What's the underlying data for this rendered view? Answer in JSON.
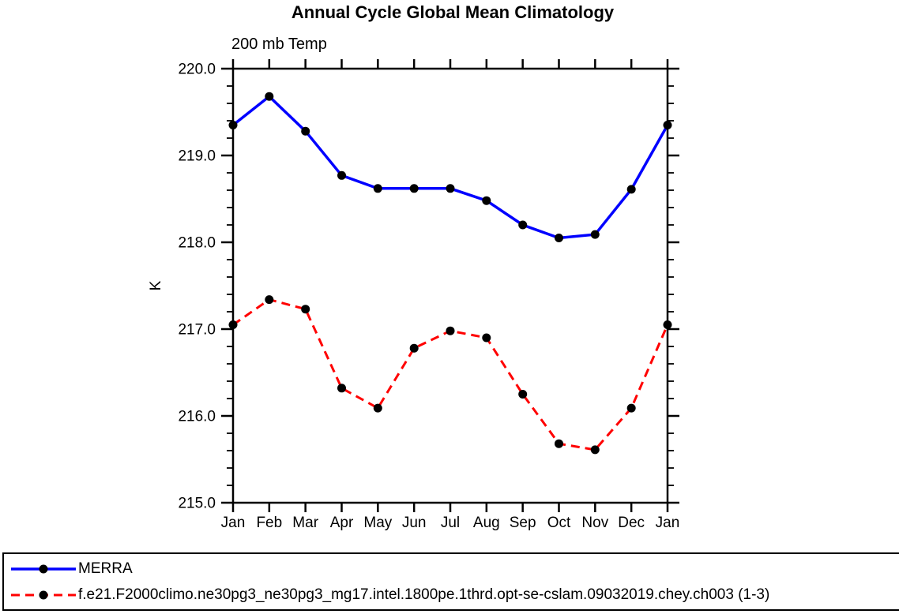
{
  "chart_data": {
    "type": "line",
    "title": "Annual Cycle Global Mean Climatology",
    "subtitle": "200 mb Temp",
    "ylabel": "K",
    "xlabel": "",
    "x_tick_labels": [
      "Jan",
      "Feb",
      "Mar",
      "Apr",
      "May",
      "Jun",
      "Jul",
      "Aug",
      "Sep",
      "Oct",
      "Nov",
      "Dec",
      "Jan"
    ],
    "ylim": [
      215.0,
      220.0
    ],
    "y_tick_labels": [
      "215.0",
      "216.0",
      "217.0",
      "218.0",
      "219.0",
      "220.0"
    ],
    "y_major_step": 1.0,
    "y_minor_step": 0.2,
    "grid": false,
    "legend_position": "bottom-box",
    "marker": "filled-circle",
    "marker_color": "#000000",
    "axis_color": "#000000",
    "series": [
      {
        "name": "MERRA",
        "color": "#0000ff",
        "line_style": "solid",
        "values": [
          219.35,
          219.68,
          219.28,
          218.77,
          218.62,
          218.62,
          218.62,
          218.48,
          218.2,
          218.05,
          218.09,
          218.61,
          219.35
        ]
      },
      {
        "name": "f.e21.F2000climo.ne30pg3_ne30pg3_mg17.intel.1800pe.1thrd.opt-se-cslam.09032019.chey.ch003 (1-3)",
        "color": "#ff0000",
        "line_style": "dashed",
        "values": [
          217.05,
          217.34,
          217.23,
          216.32,
          216.09,
          216.78,
          216.98,
          216.9,
          216.25,
          215.68,
          215.61,
          216.09,
          217.05
        ]
      }
    ]
  }
}
